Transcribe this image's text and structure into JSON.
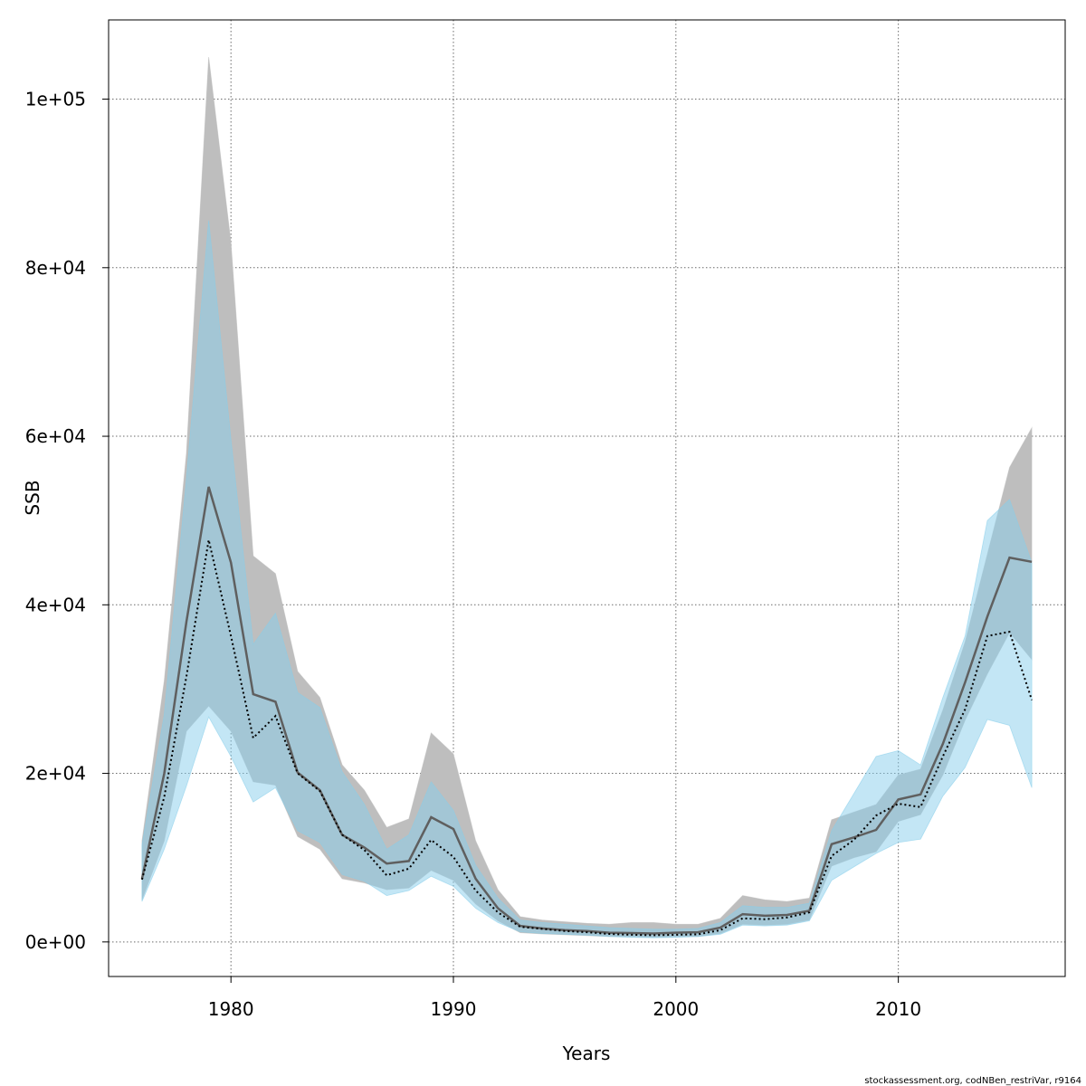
{
  "chart_data": {
    "type": "area",
    "xlabel": "Years",
    "ylabel": "SSB",
    "xlim": [
      1974.5,
      2017.5
    ],
    "ylim": [
      -4100,
      109400
    ],
    "x_ticks": [
      {
        "value": 1980,
        "label": "1980"
      },
      {
        "value": 1990,
        "label": "1990"
      },
      {
        "value": 2000,
        "label": "2000"
      },
      {
        "value": 2010,
        "label": "2010"
      }
    ],
    "y_ticks": [
      {
        "value": 0,
        "label": "0e+00"
      },
      {
        "value": 20000,
        "label": "2e+04"
      },
      {
        "value": 40000,
        "label": "4e+04"
      },
      {
        "value": 60000,
        "label": "6e+04"
      },
      {
        "value": 80000,
        "label": "8e+04"
      },
      {
        "value": 100000,
        "label": "1e+05"
      }
    ],
    "grid": true,
    "footer": "stockassessment.org, codNBen_restriVar, r9164",
    "colors": {
      "band_a": "#bebebe",
      "band_b": "#87ceeb",
      "line_a": "#5f5f5f",
      "line_b": "#000000"
    },
    "years": [
      1976,
      1977,
      1978,
      1979,
      1980,
      1981,
      1982,
      1983,
      1984,
      1985,
      1986,
      1987,
      1988,
      1989,
      1990,
      1991,
      1992,
      1993,
      1994,
      1995,
      1996,
      1997,
      1998,
      1999,
      2000,
      2001,
      2002,
      2003,
      2004,
      2005,
      2006,
      2007,
      2008,
      2009,
      2010,
      2011,
      2012,
      2013,
      2014,
      2015,
      2016
    ],
    "series": [
      {
        "style": "solid",
        "values": [
          7500,
          20000,
          38000,
          54000,
          45000,
          29400,
          28500,
          20100,
          18000,
          12700,
          11200,
          9300,
          9600,
          14800,
          13400,
          7500,
          4000,
          1900,
          1600,
          1400,
          1300,
          1100,
          1050,
          1000,
          1100,
          1150,
          1700,
          3300,
          3100,
          3200,
          3700,
          11600,
          12400,
          13300,
          16900,
          17500,
          23500,
          30800,
          38600,
          45600,
          45100
        ],
        "upper": [
          12000,
          31000,
          58000,
          105000,
          83000,
          45800,
          43700,
          32100,
          29000,
          21000,
          18000,
          13600,
          14600,
          24800,
          22300,
          12000,
          6200,
          3000,
          2600,
          2400,
          2200,
          2100,
          2300,
          2300,
          2100,
          2100,
          2800,
          5500,
          5000,
          4800,
          5200,
          14500,
          15400,
          16300,
          19800,
          20500,
          27500,
          35600,
          46000,
          56300,
          61000
        ],
        "lower": [
          5000,
          12000,
          25000,
          28000,
          25000,
          19000,
          18600,
          12500,
          11000,
          7500,
          7000,
          6200,
          6400,
          8500,
          7300,
          4500,
          2500,
          1100,
          950,
          850,
          750,
          650,
          600,
          550,
          600,
          650,
          1000,
          2100,
          2000,
          2100,
          2600,
          9000,
          10000,
          10700,
          14300,
          15100,
          19800,
          26300,
          31800,
          36700,
          33500
        ]
      },
      {
        "style": "dotted",
        "values": [
          7400,
          17200,
          31500,
          47700,
          36300,
          24200,
          26800,
          20000,
          17900,
          12700,
          10900,
          7900,
          8700,
          12100,
          10100,
          6100,
          3500,
          1800,
          1550,
          1300,
          1150,
          950,
          850,
          800,
          850,
          900,
          1400,
          2800,
          2700,
          2900,
          3500,
          10200,
          12100,
          15000,
          16400,
          16000,
          22000,
          27600,
          36300,
          36800,
          28700
        ],
        "upper": [
          11500,
          27000,
          55000,
          85600,
          59600,
          35300,
          39000,
          29600,
          27800,
          20200,
          16300,
          11000,
          12700,
          19000,
          15600,
          9100,
          5200,
          2600,
          2300,
          2100,
          1900,
          1700,
          1600,
          1500,
          1500,
          1600,
          2300,
          4300,
          4100,
          4100,
          4600,
          13200,
          17600,
          22000,
          22700,
          21000,
          29000,
          36300,
          50000,
          52500,
          45000
        ],
        "lower": [
          4800,
          11000,
          18500,
          26700,
          22000,
          16600,
          18300,
          13200,
          11800,
          8000,
          7200,
          5500,
          6100,
          7800,
          6600,
          4000,
          2300,
          1200,
          1000,
          900,
          800,
          650,
          550,
          500,
          550,
          650,
          900,
          2000,
          1900,
          2000,
          2500,
          7300,
          8900,
          10500,
          11800,
          12200,
          17300,
          20700,
          26400,
          25700,
          18300
        ]
      }
    ]
  }
}
